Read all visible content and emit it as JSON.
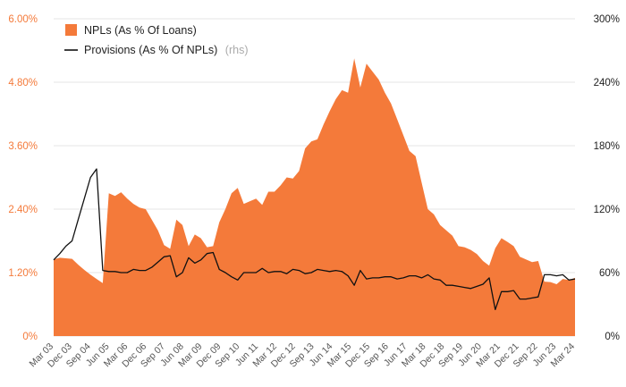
{
  "chart_data": {
    "type": "area",
    "title": "",
    "xlabel": "",
    "ylabel_left": "",
    "ylabel_right": "",
    "colors": {
      "npl": "#f47a3a",
      "provisions": "#111111",
      "left_ticks": "#f47a3a",
      "right_ticks": "#222222"
    },
    "ylim_left": [
      0,
      6.0
    ],
    "ylim_right": [
      0,
      300
    ],
    "left_tick_labels": [
      "0%",
      "1.20%",
      "2.40%",
      "3.60%",
      "4.80%",
      "6.00%"
    ],
    "right_tick_labels": [
      "0%",
      "60%",
      "120%",
      "180%",
      "240%",
      "300%"
    ],
    "x_tick_labels": [
      "Mar 03",
      "Dec 03",
      "Sep 04",
      "Jun 05",
      "Mar 06",
      "Dec 06",
      "Sep 07",
      "Jun 08",
      "Mar 09",
      "Dec 09",
      "Sep 10",
      "Jun 11",
      "Mar 12",
      "Dec 12",
      "Sep 13",
      "Jun 14",
      "Mar 15",
      "Dec 15",
      "Sep 16",
      "Jun 17",
      "Mar 18",
      "Dec 18",
      "Sep 19",
      "Jun 20",
      "Mar 21",
      "Dec 21",
      "Sep 22",
      "Jun 23",
      "Mar 24"
    ],
    "legend": {
      "npl_label": "NPLs (As % Of Loans)",
      "provisions_label": "Provisions (As % Of NPLs)",
      "provisions_note": "(rhs)"
    },
    "series": [
      {
        "name": "NPLs (As % Of Loans)",
        "axis": "left",
        "type": "area",
        "values": [
          1.45,
          1.48,
          1.47,
          1.46,
          1.35,
          1.25,
          1.16,
          1.08,
          1.0,
          2.7,
          2.65,
          2.72,
          2.6,
          2.5,
          2.43,
          2.4,
          2.2,
          2.0,
          1.72,
          1.65,
          2.2,
          2.1,
          1.7,
          1.92,
          1.85,
          1.68,
          1.7,
          2.15,
          2.4,
          2.7,
          2.8,
          2.5,
          2.55,
          2.6,
          2.48,
          2.73,
          2.73,
          2.85,
          3.0,
          2.98,
          3.12,
          3.55,
          3.68,
          3.72,
          4.0,
          4.25,
          4.48,
          4.65,
          4.6,
          5.25,
          4.7,
          5.15,
          5.0,
          4.85,
          4.6,
          4.4,
          4.1,
          3.8,
          3.5,
          3.4,
          2.9,
          2.4,
          2.3,
          2.1,
          2.0,
          1.9,
          1.7,
          1.68,
          1.63,
          1.55,
          1.42,
          1.33,
          1.66,
          1.85,
          1.78,
          1.7,
          1.5,
          1.45,
          1.4,
          1.42,
          1.03,
          1.02,
          0.98,
          1.08,
          1.06,
          1.1
        ]
      },
      {
        "name": "Provisions (As % Of NPLs)",
        "axis": "right",
        "type": "line",
        "values": [
          72,
          78,
          85,
          90,
          110,
          130,
          150,
          158,
          62,
          61,
          61,
          60,
          60,
          63,
          62,
          62,
          65,
          70,
          75,
          76,
          56,
          60,
          74,
          69,
          72,
          78,
          79,
          63,
          60,
          56,
          53,
          60,
          60,
          60,
          64,
          60,
          61,
          61,
          59,
          63,
          62,
          59,
          60,
          63,
          62,
          61,
          62,
          61,
          57,
          48,
          62,
          54,
          55,
          55,
          56,
          56,
          54,
          55,
          57,
          57,
          55,
          58,
          54,
          53,
          48,
          48,
          47,
          46,
          45,
          47,
          49,
          55,
          25,
          42,
          42,
          43,
          35,
          35,
          36,
          37,
          58,
          58,
          57,
          58,
          53,
          54
        ]
      }
    ]
  }
}
